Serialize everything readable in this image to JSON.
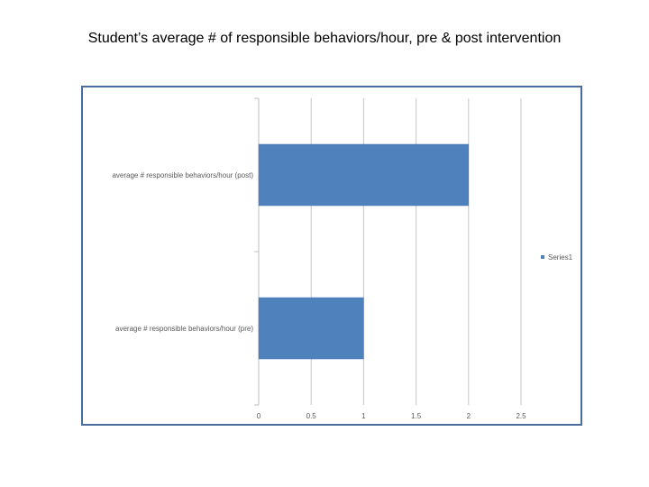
{
  "page": {
    "title": "Student’s average # of responsible behaviors/hour, pre & post intervention"
  },
  "chart_data": {
    "type": "bar",
    "orientation": "horizontal",
    "categories": [
      "average # responsible behaviors/hour (pre)",
      "average # responsible behaviors/hour (post)"
    ],
    "series": [
      {
        "name": "Series1",
        "values": [
          1,
          2
        ],
        "color": "#4f81bd"
      }
    ],
    "xlim": [
      0,
      2.5
    ],
    "x_ticks": [
      "0",
      "0.5",
      "1",
      "1.5",
      "2",
      "2.5"
    ],
    "grid": "vertical",
    "legend": "right",
    "xlabel": "",
    "ylabel": ""
  }
}
